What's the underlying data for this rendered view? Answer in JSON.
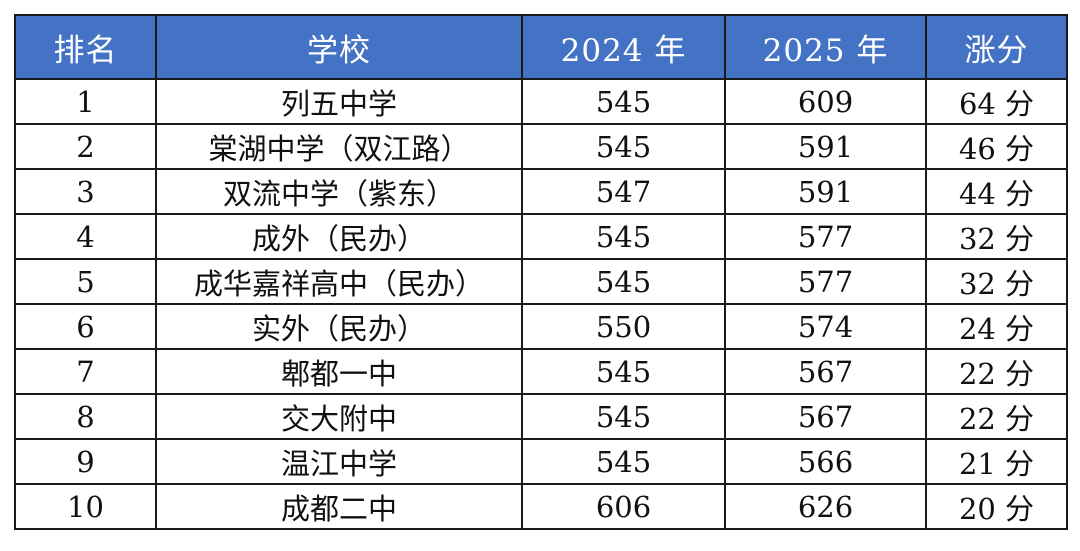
{
  "header": {
    "rank": "排名",
    "school": "学校",
    "year2024": "2024 年",
    "year2025": "2025 年",
    "gain": "涨分"
  },
  "colors": {
    "header_bg": "#4472c4",
    "header_text": "#ffffff",
    "border": "#1a1a1a"
  },
  "rows": [
    {
      "rank": "1",
      "school": "列五中学",
      "y2024": "545",
      "y2025": "609",
      "gain": "64 分"
    },
    {
      "rank": "2",
      "school": "棠湖中学（双江路）",
      "y2024": "545",
      "y2025": "591",
      "gain": "46 分"
    },
    {
      "rank": "3",
      "school": "双流中学（紫东）",
      "y2024": "547",
      "y2025": "591",
      "gain": "44 分"
    },
    {
      "rank": "4",
      "school": "成外（民办）",
      "y2024": "545",
      "y2025": "577",
      "gain": "32 分"
    },
    {
      "rank": "5",
      "school": "成华嘉祥高中（民办）",
      "y2024": "545",
      "y2025": "577",
      "gain": "32 分"
    },
    {
      "rank": "6",
      "school": "实外（民办）",
      "y2024": "550",
      "y2025": "574",
      "gain": "24 分"
    },
    {
      "rank": "7",
      "school": "郫都一中",
      "y2024": "545",
      "y2025": "567",
      "gain": "22 分"
    },
    {
      "rank": "8",
      "school": "交大附中",
      "y2024": "545",
      "y2025": "567",
      "gain": "22 分"
    },
    {
      "rank": "9",
      "school": "温江中学",
      "y2024": "545",
      "y2025": "566",
      "gain": "21 分"
    },
    {
      "rank": "10",
      "school": "成都二中",
      "y2024": "606",
      "y2025": "626",
      "gain": "20 分"
    }
  ]
}
